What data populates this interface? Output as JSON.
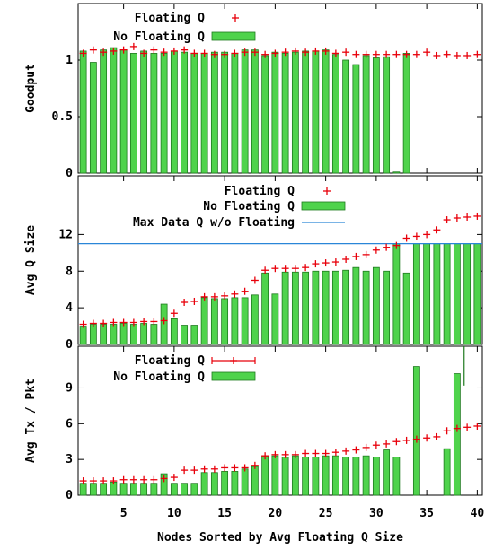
{
  "chart_data": [
    {
      "type": "bar",
      "ylabel": "Goodput",
      "yticks": [
        "1",
        "0.5",
        "0"
      ],
      "ylim": [
        0,
        1.5
      ],
      "x": [
        1,
        2,
        3,
        4,
        5,
        6,
        7,
        8,
        9,
        10,
        11,
        12,
        13,
        14,
        15,
        16,
        17,
        18,
        19,
        20,
        21,
        22,
        23,
        24,
        25,
        26,
        27,
        28,
        29,
        30,
        31,
        32,
        33,
        34,
        35,
        36,
        37,
        38,
        39,
        40
      ],
      "series": [
        {
          "name": "Floating Q",
          "marker": "+",
          "values": [
            1.06,
            1.09,
            1.07,
            1.08,
            1.09,
            1.12,
            1.06,
            1.09,
            1.07,
            1.08,
            1.09,
            1.06,
            1.06,
            1.05,
            1.05,
            1.06,
            1.07,
            1.07,
            1.05,
            1.06,
            1.07,
            1.08,
            1.07,
            1.08,
            1.08,
            1.06,
            1.07,
            1.05,
            1.05,
            1.05,
            1.05,
            1.05,
            1.05,
            1.05,
            1.07,
            1.04,
            1.05,
            1.04,
            1.04,
            1.05
          ]
        },
        {
          "name": "No Floating Q",
          "marker": "bar",
          "values": [
            1.08,
            0.98,
            1.09,
            1.11,
            1.09,
            1.06,
            1.08,
            1.06,
            1.06,
            1.08,
            1.07,
            1.06,
            1.06,
            1.07,
            1.07,
            1.06,
            1.09,
            1.09,
            1.04,
            1.07,
            1.06,
            1.07,
            1.08,
            1.08,
            1.09,
            1.05,
            1.0,
            0.96,
            1.04,
            1.02,
            1.03,
            0.01,
            1.06,
            null,
            null,
            null,
            null,
            null,
            null,
            null
          ]
        }
      ]
    },
    {
      "type": "bar",
      "ylabel": "Avg Q Size",
      "yticks": [
        "12",
        "8",
        "4",
        "0"
      ],
      "ylim": [
        0,
        18.4
      ],
      "x": [
        1,
        2,
        3,
        4,
        5,
        6,
        7,
        8,
        9,
        10,
        11,
        12,
        13,
        14,
        15,
        16,
        17,
        18,
        19,
        20,
        21,
        22,
        23,
        24,
        25,
        26,
        27,
        28,
        29,
        30,
        31,
        32,
        33,
        34,
        35,
        36,
        37,
        38,
        39,
        40
      ],
      "series": [
        {
          "name": "Floating Q",
          "marker": "+",
          "values": [
            2.2,
            2.3,
            2.3,
            2.4,
            2.4,
            2.4,
            2.5,
            2.5,
            2.6,
            3.4,
            4.6,
            4.7,
            5.2,
            5.2,
            5.3,
            5.5,
            5.8,
            7.0,
            8.1,
            8.3,
            8.3,
            8.3,
            8.4,
            8.8,
            8.9,
            9.0,
            9.3,
            9.6,
            9.8,
            10.3,
            10.6,
            10.8,
            11.6,
            11.8,
            12.0,
            12.5,
            13.6,
            13.8,
            13.9,
            14.0
          ]
        },
        {
          "name": "No Floating Q",
          "marker": "bar",
          "values": [
            2.0,
            2.2,
            2.2,
            2.2,
            2.3,
            2.2,
            2.3,
            2.2,
            4.4,
            2.8,
            2.1,
            2.1,
            5.1,
            5.0,
            5.0,
            5.1,
            5.1,
            5.4,
            7.8,
            5.5,
            7.9,
            7.9,
            7.9,
            8.0,
            8.0,
            8.0,
            8.1,
            8.4,
            8.0,
            8.4,
            8.0,
            11.0,
            7.8,
            11.0,
            11.0,
            11.0,
            11.0,
            11.0,
            11.0,
            11.0
          ]
        }
      ],
      "reference_line": {
        "name": "Max Data Q w/o Floating",
        "value": 11.0
      }
    },
    {
      "type": "bar",
      "ylabel": "Avg Tx / Pkt",
      "yticks": [
        "9",
        "6",
        "3",
        "0"
      ],
      "ylim": [
        0,
        12.5
      ],
      "xlabel": "Nodes Sorted by Avg Floating Q Size",
      "xticks": [
        "5",
        "10",
        "15",
        "20",
        "25",
        "30",
        "35",
        "40"
      ],
      "x": [
        1,
        2,
        3,
        4,
        5,
        6,
        7,
        8,
        9,
        10,
        11,
        12,
        13,
        14,
        15,
        16,
        17,
        18,
        19,
        20,
        21,
        22,
        23,
        24,
        25,
        26,
        27,
        28,
        29,
        30,
        31,
        32,
        33,
        34,
        35,
        36,
        37,
        38,
        39,
        40
      ],
      "series": [
        {
          "name": "Floating Q",
          "marker": "+ with error bars",
          "values": [
            1.2,
            1.2,
            1.2,
            1.2,
            1.3,
            1.3,
            1.3,
            1.3,
            1.4,
            1.5,
            2.1,
            2.1,
            2.2,
            2.2,
            2.3,
            2.3,
            2.3,
            2.5,
            3.3,
            3.4,
            3.4,
            3.4,
            3.5,
            3.5,
            3.5,
            3.6,
            3.7,
            3.8,
            4.0,
            4.2,
            4.3,
            4.5,
            4.6,
            4.7,
            4.8,
            4.9,
            5.4,
            5.6,
            5.7,
            5.8
          ]
        },
        {
          "name": "No Floating Q",
          "marker": "bar",
          "values": [
            1.0,
            1.0,
            1.0,
            1.1,
            1.0,
            1.0,
            1.0,
            1.0,
            1.8,
            1.0,
            1.0,
            1.0,
            1.9,
            1.9,
            2.0,
            2.0,
            2.2,
            2.4,
            3.3,
            3.3,
            3.2,
            3.3,
            3.2,
            3.2,
            3.3,
            3.3,
            3.2,
            3.2,
            3.3,
            3.2,
            3.8,
            3.2,
            null,
            10.8,
            null,
            null,
            3.9,
            10.2,
            null,
            null
          ]
        }
      ]
    }
  ],
  "colors": {
    "floating": "#e8000b",
    "bar_fill": "#4fd34c",
    "bar_stroke": "#1e7a1e",
    "ref_line": "#2a86d8"
  }
}
